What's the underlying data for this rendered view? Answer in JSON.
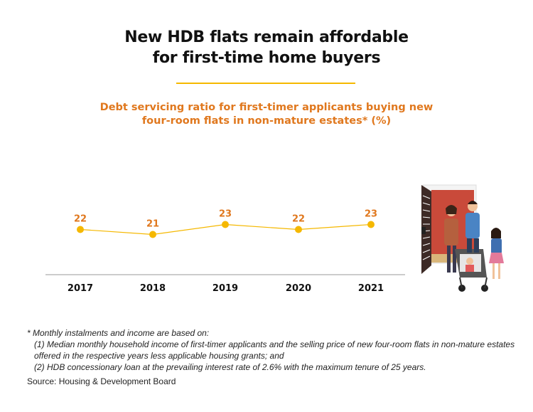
{
  "header": {
    "title_line1": "New HDB flats remain affordable",
    "title_line2": "for first-time home buyers",
    "subtitle_line1": "Debt servicing ratio for first-timer applicants buying new",
    "subtitle_line2": "four-room flats in non-mature estates* (%)"
  },
  "colors": {
    "accent": "#f5b800",
    "subtitle": "#e0781e",
    "line": "#f5b800",
    "label": "#e0781e"
  },
  "chart_data": {
    "type": "line",
    "title": "Debt servicing ratio for first-timer applicants buying new four-room flats in non-mature estates* (%)",
    "categories": [
      "2017",
      "2018",
      "2019",
      "2020",
      "2021"
    ],
    "series": [
      {
        "values": [
          22,
          21,
          23,
          22,
          23
        ]
      }
    ],
    "data_labels": [
      "22",
      "21",
      "23",
      "22",
      "23"
    ],
    "xlabel": "",
    "ylabel": "",
    "grid": false,
    "legend": "none"
  },
  "footnotes": {
    "line1": "* Monthly instalments and income are based on:",
    "line2": "(1) Median monthly household income of first-timer applicants and the selling price of new four-room flats in non-mature estates offered in the respective years less applicable housing grants; and",
    "line3": "(2) HDB concessionary loan at the prevailing interest rate of 2.6% with the maximum tenure of 25 years."
  },
  "source": "Source: Housing & Development Board",
  "illustration": {
    "icon": "family-with-stroller-at-door-illustration"
  }
}
